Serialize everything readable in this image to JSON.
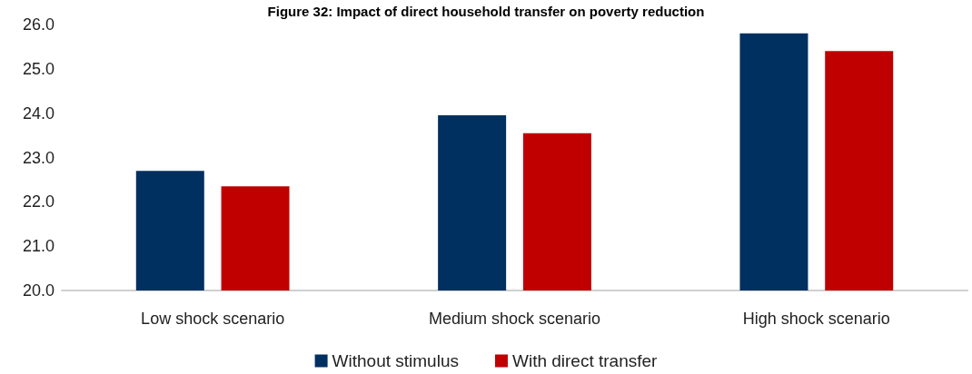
{
  "chart_data": {
    "type": "bar",
    "title": "Figure 32: Impact of direct household transfer on poverty reduction",
    "categories": [
      "Low shock scenario",
      "Medium shock scenario",
      "High shock scenario"
    ],
    "series": [
      {
        "name": "Without stimulus",
        "color": "#003060",
        "values": [
          22.7,
          23.95,
          25.8
        ]
      },
      {
        "name": "With direct transfer",
        "color": "#c00000",
        "values": [
          22.35,
          23.55,
          25.4
        ]
      }
    ],
    "ylim": [
      20,
      26
    ],
    "yticks": [
      {
        "value": 20,
        "label": "20.0"
      },
      {
        "value": 21,
        "label": "21.0"
      },
      {
        "value": 22,
        "label": "22.0"
      },
      {
        "value": 23,
        "label": "23.0"
      },
      {
        "value": 24,
        "label": "24.0"
      },
      {
        "value": 25,
        "label": "25.0"
      },
      {
        "value": 26,
        "label": "26.0"
      }
    ],
    "grid": false,
    "legend": "bottom"
  }
}
